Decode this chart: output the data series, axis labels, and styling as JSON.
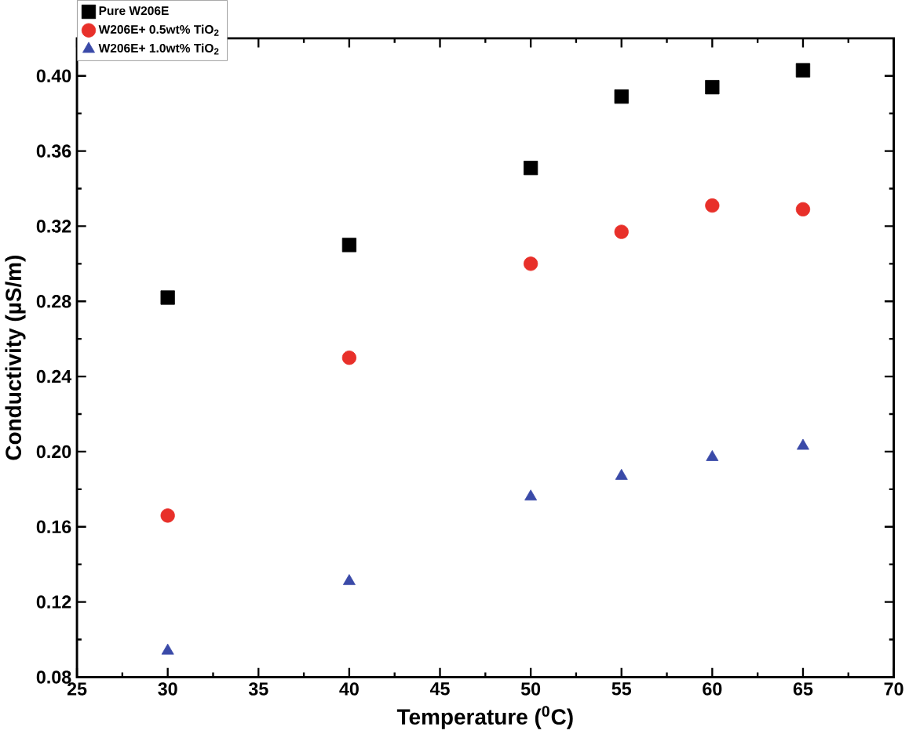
{
  "chart_data": {
    "type": "scatter",
    "xlabel": "Temperature ($^{0}$C)",
    "ylabel": "Conductivity (µS/m)",
    "x": [
      30,
      40,
      50,
      55,
      60,
      65
    ],
    "series": [
      {
        "name": "Pure W206E",
        "color": "#000000",
        "marker": "square",
        "values": [
          0.282,
          0.31,
          0.351,
          0.389,
          0.394,
          0.403
        ]
      },
      {
        "name": "W206E+ 0.5wt% TiO$_{2}$",
        "color": "#e8302a",
        "marker": "circle",
        "values": [
          0.166,
          0.25,
          0.3,
          0.317,
          0.331,
          0.329
        ]
      },
      {
        "name": "W206E+ 1.0wt% TiO$_{2}$",
        "color": "#3a4aa8",
        "marker": "triangle",
        "values": [
          0.094,
          0.131,
          0.176,
          0.187,
          0.197,
          0.203
        ]
      }
    ],
    "xlim": [
      25,
      70
    ],
    "xticks": [
      25,
      30,
      35,
      40,
      45,
      50,
      55,
      60,
      65,
      70
    ],
    "ylim": [
      0.08,
      0.42
    ],
    "yticks": [
      0.08,
      0.12,
      0.16,
      {
        "value": 0.2,
        "label": "0.20"
      },
      0.24,
      0.28,
      0.32,
      0.36,
      {
        "value": 0.4,
        "label": "0.40"
      }
    ],
    "grid": false,
    "legend": "top left"
  }
}
